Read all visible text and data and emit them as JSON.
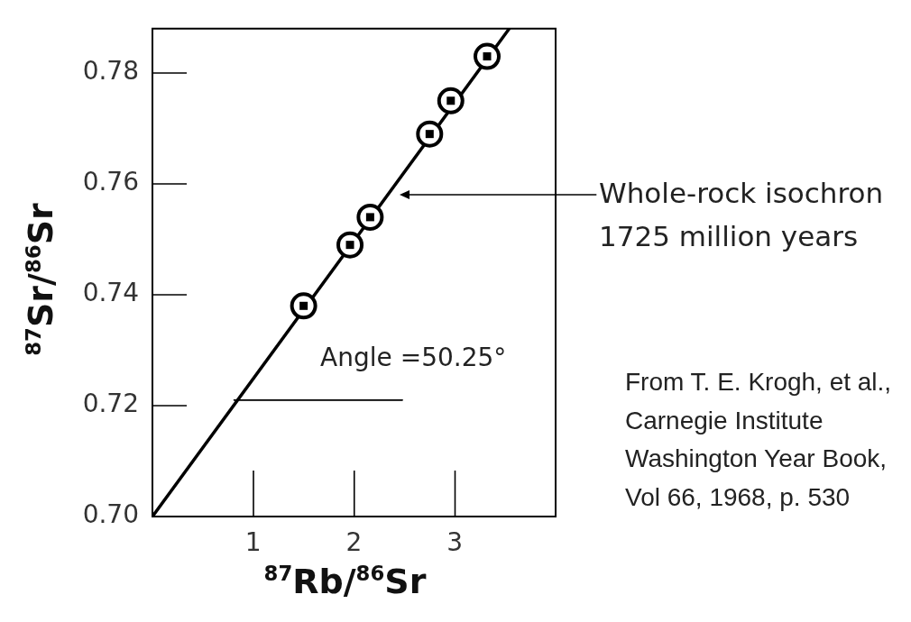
{
  "chart_data": {
    "type": "scatter",
    "xlabel": "$^{87}$Rb/$^{86}$Sr",
    "ylabel": "$^{87}$Sr/$^{86}$Sr",
    "xlim": [
      0,
      4
    ],
    "xticks": [
      1,
      2,
      3
    ],
    "ylim": [
      0.7,
      0.788
    ],
    "yticks": [
      {
        "value": 0.7,
        "label": "0.70"
      },
      0.72,
      0.74,
      0.76,
      0.78
    ],
    "series": [
      {
        "type": "line",
        "x": [
          0,
          3.54
        ],
        "values": [
          0.7,
          0.788
        ],
        "color": "#000000"
      },
      {
        "x": [
          1.5,
          1.96,
          2.16,
          2.75,
          2.96,
          3.32
        ],
        "values": [
          0.738,
          0.749,
          0.754,
          0.769,
          0.775,
          0.783
        ],
        "color": "#000000",
        "marker": "circle"
      },
      {
        "type": "line",
        "x": [
          0.81,
          2.48
        ],
        "values": [
          0.721,
          0.721
        ],
        "color": "#000000"
      }
    ],
    "annotations": [
      "Whole-rock isochron\n1725 million years",
      "Angle =50.25°",
      "From T. E. Krogh, et al.,\nCarnegie Institute\nWashington Year Book,\nVol 66, 1968, p. 530"
    ]
  }
}
